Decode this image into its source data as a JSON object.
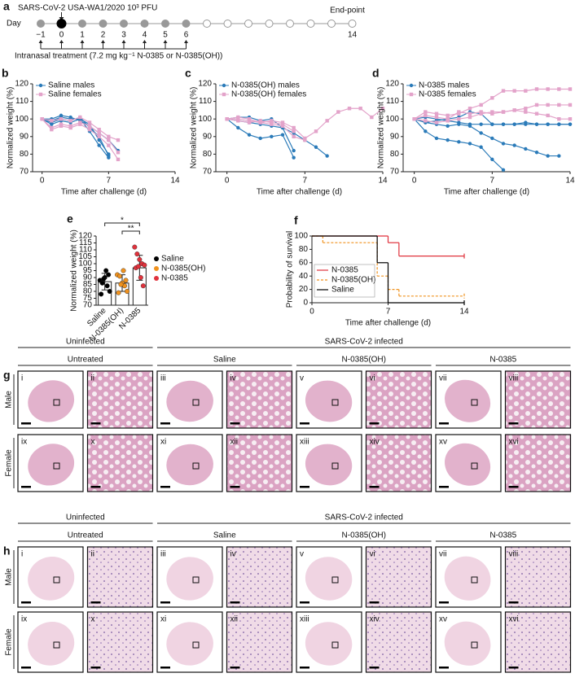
{
  "panel_a": {
    "letter": "a",
    "infection": "SARS-CoV-2 USA-WA1/2020 10³ PFU",
    "day": "Day",
    "days": [
      "−1",
      "0",
      "1",
      "2",
      "3",
      "4",
      "5",
      "6"
    ],
    "end_day": "14",
    "endpoint": "End-point",
    "treatment": "Intranasal treatment (7.2 mg kg⁻¹ N-0385 or N-0385(OH))"
  },
  "chart_data": [
    {
      "letter": "b",
      "type": "line",
      "xlabel": "Time after challenge (d)",
      "ylabel": "Normalized weight (%)",
      "x": [
        0,
        1,
        2,
        3,
        4,
        5,
        6,
        7,
        8,
        9,
        10,
        11,
        12,
        13,
        14
      ],
      "xlim": [
        -1,
        14
      ],
      "xticks": [
        0,
        7,
        14
      ],
      "ylim": [
        70,
        120
      ],
      "yticks": [
        70,
        80,
        90,
        100,
        110,
        120
      ],
      "legend": "top-left",
      "series": [
        {
          "name": "Saline males",
          "color": "#2b7bb9",
          "marker": "circle",
          "lines": [
            [
              100,
              99,
              101,
              100,
              100,
              97,
              88,
              80,
              null,
              null,
              null,
              null,
              null,
              null,
              null
            ],
            [
              100,
              98,
              100,
              99,
              101,
              95,
              90,
              79,
              null,
              null,
              null,
              null,
              null,
              null,
              null
            ],
            [
              100,
              97,
              99,
              98,
              100,
              93,
              85,
              78,
              null,
              null,
              null,
              null,
              null,
              null,
              null
            ],
            [
              100,
              100,
              102,
              101,
              99,
              96,
              92,
              88,
              82,
              null,
              null,
              null,
              null,
              null,
              null
            ]
          ]
        },
        {
          "name": "Saline females",
          "color": "#e3a3ca",
          "marker": "square",
          "lines": [
            [
              100,
              95,
              97,
              96,
              98,
              96,
              92,
              88,
              81,
              null,
              null,
              null,
              null,
              null,
              null
            ],
            [
              100,
              94,
              96,
              95,
              97,
              94,
              90,
              85,
              77,
              null,
              null,
              null,
              null,
              null,
              null
            ],
            [
              100,
              99,
              100,
              99,
              101,
              98,
              94,
              90,
              88,
              null,
              null,
              null,
              null,
              null,
              null
            ]
          ]
        }
      ]
    },
    {
      "letter": "c",
      "type": "line",
      "xlabel": "Time after challenge (d)",
      "ylabel": "Normalized weight (%)",
      "x": [
        0,
        1,
        2,
        3,
        4,
        5,
        6,
        7,
        8,
        9,
        10,
        11,
        12,
        13,
        14
      ],
      "xlim": [
        -1,
        14
      ],
      "xticks": [
        0,
        7,
        14
      ],
      "ylim": [
        70,
        120
      ],
      "yticks": [
        70,
        80,
        90,
        100,
        110,
        120
      ],
      "legend": "top-left",
      "series": [
        {
          "name": "N-0385(OH) males",
          "color": "#2b7bb9",
          "marker": "circle",
          "lines": [
            [
              100,
              95,
              91,
              89,
              90,
              91,
              78,
              null,
              null,
              null,
              null,
              null,
              null,
              null,
              null
            ],
            [
              100,
              99,
              98,
              97,
              96,
              95,
              92,
              88,
              84,
              79,
              null,
              null,
              null,
              null,
              null
            ],
            [
              100,
              101,
              101,
              99,
              100,
              95,
              82,
              null,
              null,
              null,
              null,
              null,
              null,
              null,
              null
            ]
          ]
        },
        {
          "name": "N-0385(OH) females",
          "color": "#e3a3ca",
          "marker": "square",
          "lines": [
            [
              100,
              101,
              100,
              98,
              99,
              98,
              95,
              89,
              93,
              99,
              104,
              106,
              106,
              101,
              106
            ],
            [
              100,
              100,
              99,
              98,
              97,
              96,
              90,
              88,
              null,
              null,
              null,
              null,
              null,
              null,
              null
            ],
            [
              100,
              99,
              98,
              99,
              98,
              97,
              93,
              null,
              null,
              null,
              null,
              null,
              null,
              null,
              null
            ]
          ]
        }
      ]
    },
    {
      "letter": "d",
      "type": "line",
      "xlabel": "Time after challenge (d)",
      "ylabel": "Normalized weight (%)",
      "x": [
        0,
        1,
        2,
        3,
        4,
        5,
        6,
        7,
        8,
        9,
        10,
        11,
        12,
        13,
        14
      ],
      "xlim": [
        -1,
        14
      ],
      "xticks": [
        0,
        7,
        14
      ],
      "ylim": [
        70,
        120
      ],
      "yticks": [
        70,
        80,
        90,
        100,
        110,
        120
      ],
      "legend": "top-left",
      "series": [
        {
          "name": "N-0385 males",
          "color": "#2b7bb9",
          "marker": "circle",
          "lines": [
            [
              100,
              93,
              89,
              88,
              87,
              86,
              84,
              77,
              71,
              null,
              null,
              null,
              null,
              null,
              null
            ],
            [
              100,
              101,
              100,
              99,
              98,
              97,
              97,
              97,
              97,
              97,
              97,
              97,
              97,
              97,
              97
            ],
            [
              100,
              98,
              99,
              100,
              101,
              104,
              103,
              97,
              97,
              97,
              98,
              97,
              97,
              97,
              97
            ],
            [
              100,
              98,
              97,
              96,
              97,
              96,
              92,
              89,
              86,
              85,
              83,
              81,
              79,
              79,
              null
            ]
          ]
        },
        {
          "name": "N-0385 females",
          "color": "#e3a3ca",
          "marker": "square",
          "lines": [
            [
              100,
              104,
              103,
              102,
              103,
              106,
              108,
              112,
              116,
              116,
              116,
              117,
              117,
              117,
              117
            ],
            [
              100,
              102,
              101,
              100,
              104,
              103,
              104,
              103,
              104,
              105,
              106,
              108,
              108,
              108,
              108
            ],
            [
              100,
              99,
              98,
              99,
              100,
              101,
              103,
              104,
              104,
              105,
              104,
              103,
              102,
              100,
              100
            ]
          ]
        }
      ]
    },
    {
      "letter": "e",
      "type": "dot-bar",
      "ylabel": "Normalized weight (%)",
      "categories": [
        "Saline",
        "N-0385(OH)",
        "N-0385"
      ],
      "ylim": [
        70,
        120
      ],
      "yticks": [
        70,
        75,
        80,
        85,
        90,
        95,
        100,
        105,
        110,
        115,
        120
      ],
      "significance": [
        "*",
        "**"
      ],
      "groups": [
        {
          "name": "Saline",
          "color": "#000000",
          "mean": 87,
          "sd": 6,
          "points": [
            88,
            86,
            90,
            84,
            80,
            78,
            89,
            95,
            92
          ]
        },
        {
          "name": "N-0385(OH)",
          "color": "#f0921e",
          "mean": 86,
          "sd": 6,
          "points": [
            92,
            91,
            86,
            84,
            80,
            79,
            85,
            95,
            88
          ]
        },
        {
          "name": "N-0385",
          "color": "#e0323c",
          "mean": 97,
          "sd": 9,
          "points": [
            112,
            107,
            103,
            100,
            99,
            97,
            98,
            90,
            84
          ]
        }
      ]
    },
    {
      "letter": "f",
      "type": "survival",
      "xlabel": "Time after challenge (d)",
      "ylabel": "Probability of survival",
      "xlim": [
        0,
        14
      ],
      "xticks": [
        0,
        7,
        14
      ],
      "ylim": [
        0,
        100
      ],
      "yticks": [
        0,
        20,
        40,
        60,
        80,
        100
      ],
      "series": [
        {
          "name": "N-0385",
          "color": "#e0323c",
          "dash": false,
          "x": [
            0,
            7,
            8,
            14
          ],
          "values": [
            100,
            90,
            70,
            70
          ]
        },
        {
          "name": "N-0385(OH)",
          "color": "#f0921e",
          "dash": true,
          "x": [
            0,
            1,
            6,
            7,
            8,
            14
          ],
          "values": [
            100,
            90,
            40,
            20,
            10,
            10
          ]
        },
        {
          "name": "Saline",
          "color": "#000000",
          "dash": false,
          "x": [
            0,
            6,
            7,
            14
          ],
          "values": [
            100,
            60,
            0,
            0
          ]
        }
      ]
    }
  ],
  "panel_g": {
    "letter": "g",
    "group_top": [
      "Uninfected",
      "SARS-CoV-2 infected"
    ],
    "group_sub": [
      "Untreated",
      "Saline",
      "N-0385(OH)",
      "N-0385"
    ],
    "rows": [
      "Male",
      "Female"
    ],
    "numerals": [
      "i",
      "ii",
      "iii",
      "iv",
      "v",
      "vi",
      "vii",
      "viii",
      "ix",
      "x",
      "xi",
      "xii",
      "xiii",
      "xiv",
      "xv",
      "xvi"
    ]
  },
  "panel_h": {
    "letter": "h",
    "group_top": [
      "Uninfected",
      "SARS-CoV-2 infected"
    ],
    "group_sub": [
      "Untreated",
      "Saline",
      "N-0385(OH)",
      "N-0385"
    ],
    "rows": [
      "Male",
      "Female"
    ],
    "numerals": [
      "i",
      "ii",
      "iii",
      "iv",
      "v",
      "vi",
      "vii",
      "viii",
      "ix",
      "x",
      "xi",
      "xii",
      "xiii",
      "xiv",
      "xv",
      "xvi"
    ]
  }
}
